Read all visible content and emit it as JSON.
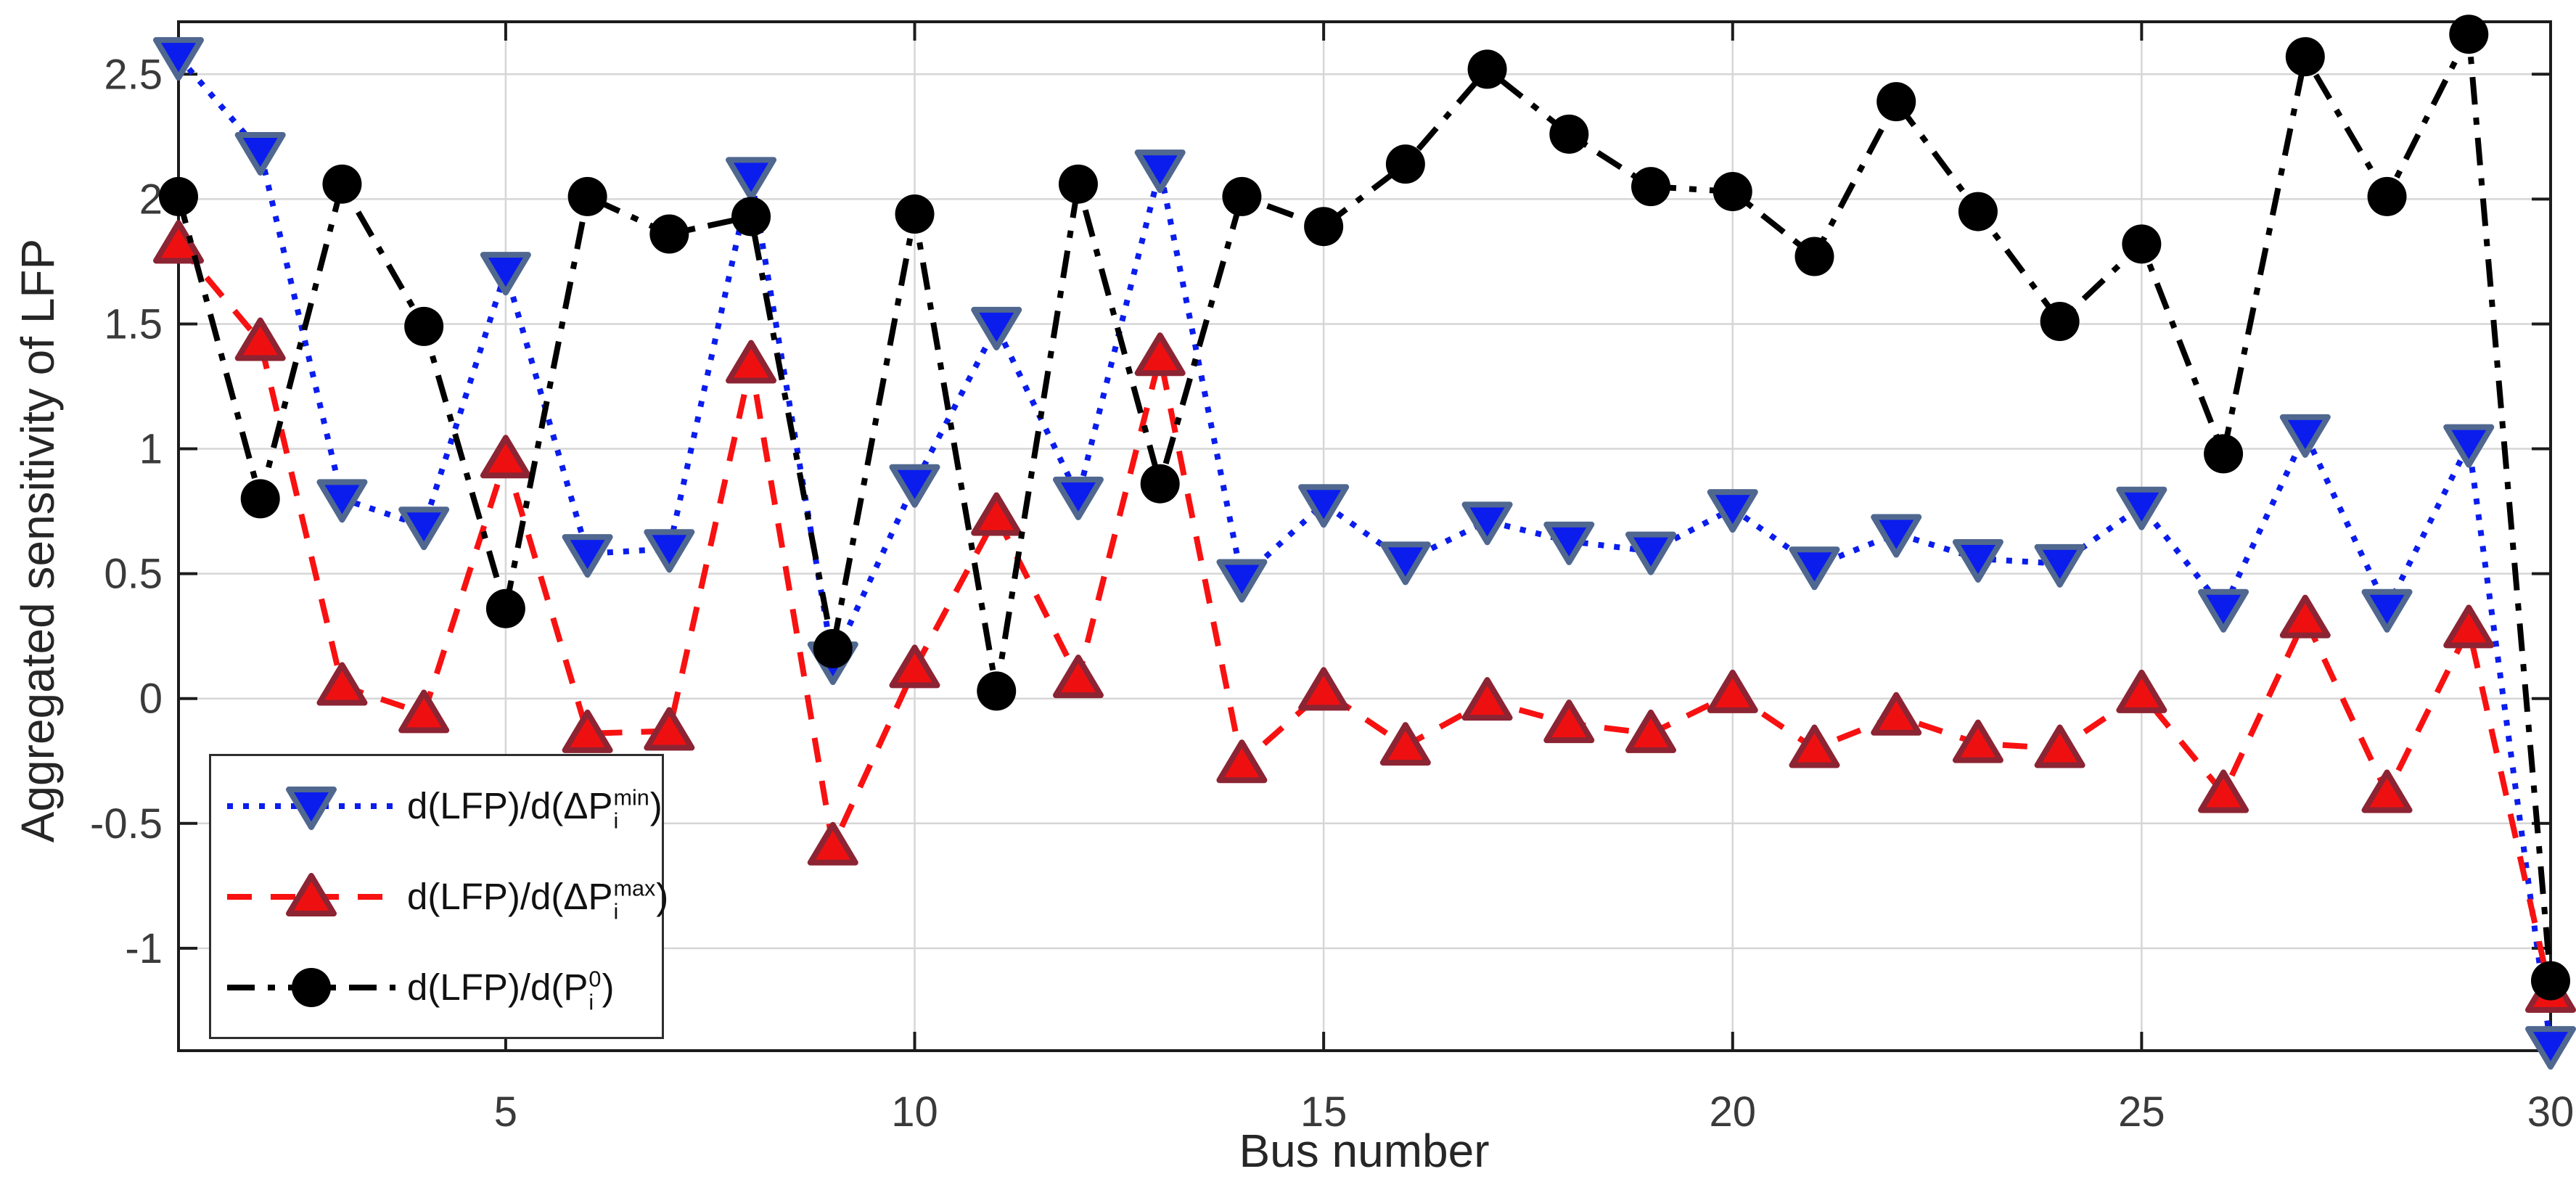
{
  "figure": {
    "background": "#ffffff"
  },
  "axes": {
    "x_label": "Bus number",
    "y_label": "Aggregated sensitivity of LFP",
    "xlim": [
      1,
      30
    ],
    "ylim": [
      -1.41,
      2.71
    ],
    "x_ticks": [
      5,
      10,
      15,
      20,
      25,
      30
    ],
    "y_ticks": [
      {
        "v": 2.5,
        "label": "2.5"
      },
      {
        "v": 2,
        "label": "2"
      },
      {
        "v": 1.5,
        "label": "1.5"
      },
      {
        "v": 1,
        "label": "1"
      },
      {
        "v": 0.5,
        "label": "0.5"
      },
      {
        "v": 0,
        "label": "0"
      },
      {
        "v": -0.5,
        "label": "-0.5"
      },
      {
        "v": -1,
        "label": "-1"
      }
    ],
    "grid_color": "#d6d6d6",
    "axis_color": "#1c1c1c",
    "tick_label_color": "#3a3a3a"
  },
  "chart_data": {
    "type": "line",
    "title": "",
    "xlabel": "Bus number",
    "ylabel": "Aggregated sensitivity of LFP",
    "grid": true,
    "legend_position": "lower-left",
    "x": [
      1,
      2,
      3,
      4,
      5,
      6,
      7,
      8,
      9,
      10,
      11,
      12,
      13,
      14,
      15,
      16,
      17,
      18,
      19,
      20,
      21,
      22,
      23,
      24,
      25,
      26,
      27,
      28,
      29,
      30
    ],
    "series": [
      {
        "id": "dlfp-dpmin",
        "label": "d(LFP)/d(ΔP_i^min)",
        "line_color": "#0a1ded",
        "dash": "dotted",
        "marker": "triangle-down",
        "marker_fill": "#0a1ded",
        "marker_edge": "#50688f",
        "values": [
          2.57,
          2.19,
          0.8,
          0.69,
          1.71,
          0.58,
          0.6,
          2.09,
          0.15,
          0.86,
          1.49,
          0.81,
          2.12,
          0.48,
          0.78,
          0.55,
          0.71,
          0.63,
          0.59,
          0.76,
          0.53,
          0.66,
          0.56,
          0.54,
          0.77,
          0.36,
          1.06,
          0.36,
          1.02,
          -1.39
        ]
      },
      {
        "id": "dlfp-dpmax",
        "label": "d(LFP)/d(ΔP_i^max)",
        "line_color": "#f81111",
        "dash": "dashed",
        "marker": "triangle-up",
        "marker_fill": "#ee1010",
        "marker_edge": "#8c2433",
        "values": [
          1.82,
          1.43,
          0.05,
          -0.06,
          0.96,
          -0.14,
          -0.13,
          1.34,
          -0.59,
          0.12,
          0.73,
          0.08,
          1.37,
          -0.26,
          0.03,
          -0.19,
          -0.01,
          -0.1,
          -0.14,
          0.02,
          -0.2,
          -0.07,
          -0.18,
          -0.2,
          0.02,
          -0.38,
          0.32,
          -0.38,
          0.28,
          -1.18
        ]
      },
      {
        "id": "dlfp-dp0",
        "label": "d(LFP)/d(P_i^0)",
        "line_color": "#000000",
        "dash": "dashdot",
        "marker": "circle",
        "marker_fill": "#000000",
        "marker_edge": "#000000",
        "values": [
          2.01,
          0.8,
          2.06,
          1.49,
          0.36,
          2.01,
          1.86,
          1.93,
          0.2,
          1.94,
          0.03,
          2.06,
          0.86,
          2.01,
          1.89,
          2.14,
          2.52,
          2.26,
          2.05,
          2.03,
          1.77,
          2.39,
          1.95,
          1.51,
          1.82,
          0.98,
          2.57,
          2.01,
          2.66,
          -1.13
        ]
      }
    ]
  },
  "legend": {
    "items": [
      {
        "pre": "d(LFP)/d(",
        "sym": "ΔP",
        "sup": "min",
        "sub": "i",
        "post": ")"
      },
      {
        "pre": "d(LFP)/d(",
        "sym": "ΔP",
        "sup": "max",
        "sub": "i",
        "post": ")"
      },
      {
        "pre": "d(LFP)/d(",
        "sym": "P",
        "sup": "0",
        "sub": "i",
        "post": ")"
      }
    ]
  }
}
